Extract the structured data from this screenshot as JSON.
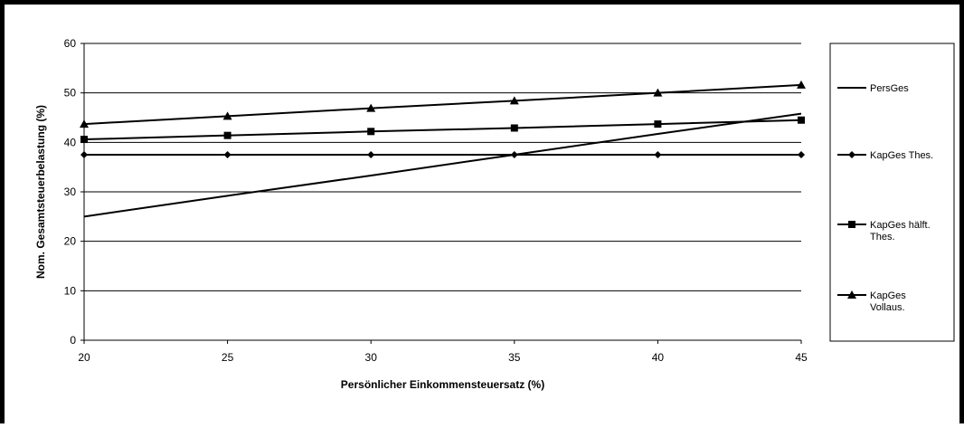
{
  "chart_data": {
    "type": "line",
    "title": "",
    "xlabel": "Persönlicher Einkommensteuersatz (%)",
    "ylabel": "Nom. Gesamtsteuerbelastung (%)",
    "x": [
      20,
      25,
      30,
      35,
      40,
      45
    ],
    "xlim": [
      20,
      45
    ],
    "ylim": [
      0,
      60
    ],
    "xticks": [
      "20",
      "25",
      "30",
      "35",
      "40",
      "45"
    ],
    "yticks": [
      "0",
      "10",
      "20",
      "30",
      "40",
      "50",
      "60"
    ],
    "grid": "horizontal",
    "legend_position": "right",
    "series": [
      {
        "name": "PersGes",
        "marker": "none",
        "values": [
          25.0,
          29.2,
          33.3,
          37.5,
          41.7,
          45.8
        ]
      },
      {
        "name": "KapGes Thes.",
        "marker": "diamond",
        "values": [
          37.5,
          37.5,
          37.5,
          37.5,
          37.5,
          37.5
        ]
      },
      {
        "name": "KapGes hälft. Thes.",
        "marker": "square",
        "values": [
          40.6,
          41.4,
          42.2,
          42.9,
          43.7,
          44.5
        ]
      },
      {
        "name": "KapGes Vollaus.",
        "marker": "triangle",
        "values": [
          43.7,
          45.3,
          46.9,
          48.4,
          50.0,
          51.6
        ]
      }
    ],
    "colors": {
      "line": "#000000",
      "grid": "#000000",
      "background": "#ffffff"
    }
  }
}
